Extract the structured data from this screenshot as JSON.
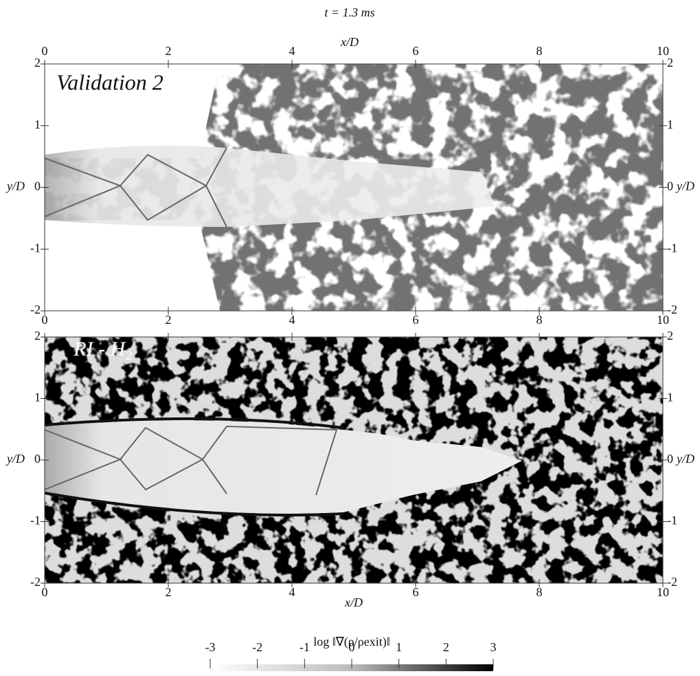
{
  "chart_data": {
    "type": "image",
    "title": "t = 1.3 ms",
    "xlabel": "x/D",
    "ylabel": "y/D",
    "xlim": [
      0,
      10
    ],
    "ylim": [
      -2,
      2
    ],
    "xticks": [
      0,
      2,
      4,
      6,
      8,
      10
    ],
    "yticks": [
      -2,
      -1,
      0,
      1,
      2
    ],
    "panels": [
      {
        "label": "Validation 2"
      },
      {
        "label": "RI - H₂"
      }
    ],
    "colorbar": {
      "label": "log ‖∇(ρ/ρexit)‖",
      "lim": [
        -3,
        3
      ],
      "ticks": [
        -3,
        -2,
        -1,
        0,
        1,
        2,
        3
      ]
    }
  }
}
